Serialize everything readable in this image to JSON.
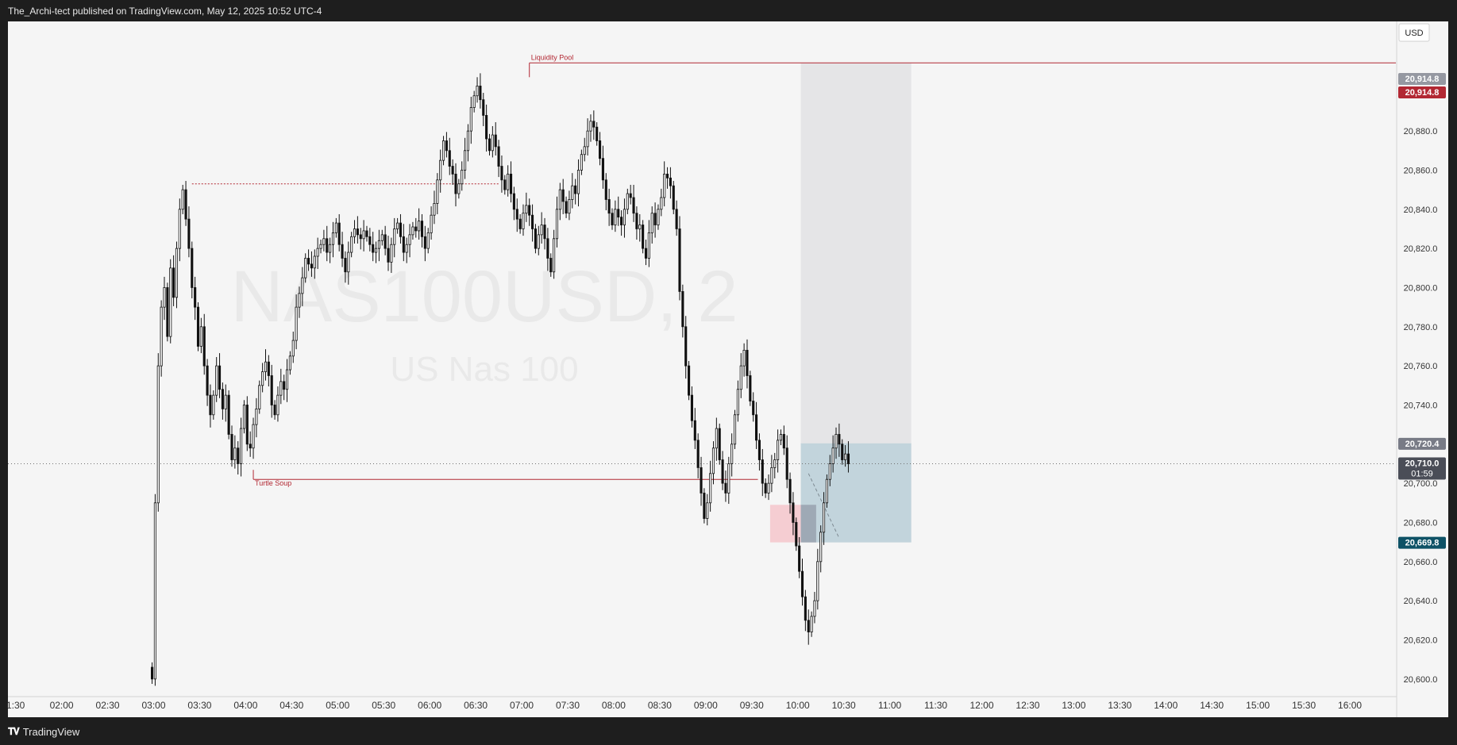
{
  "header": {
    "published": "The_Archi-tect published on TradingView.com, May 12, 2025 10:52 UTC-4"
  },
  "footer": {
    "brand": "TradingView",
    "logo": "tradingview-logo-icon"
  },
  "chart_data": {
    "type": "candlestick",
    "watermark": {
      "symbol": "NAS100USD, 2",
      "description": "US Nas 100"
    },
    "currency": "USD",
    "time_axis": {
      "ticks": [
        "1:30",
        "02:00",
        "02:30",
        "03:00",
        "03:30",
        "04:00",
        "04:30",
        "05:00",
        "05:30",
        "06:00",
        "06:30",
        "07:00",
        "07:30",
        "08:00",
        "08:30",
        "09:00",
        "09:30",
        "10:00",
        "10:30",
        "11:00",
        "11:30",
        "12:00",
        "12:30",
        "13:00",
        "13:30",
        "14:00",
        "14:30",
        "15:00",
        "15:30",
        "16:00"
      ],
      "range": [
        "01:25",
        "16:30"
      ]
    },
    "price_axis": {
      "ticks": [
        "20,600.0",
        "20,620.0",
        "20,640.0",
        "20,660.0",
        "20,680.0",
        "20,700.0",
        "20,720.0",
        "20,740.0",
        "20,760.0",
        "20,780.0",
        "20,800.0",
        "20,820.0",
        "20,840.0",
        "20,860.0",
        "20,880.0",
        "20,900.0"
      ],
      "range": [
        20591,
        20936
      ]
    },
    "price_labels": [
      {
        "text": "20,914.8",
        "value": 20914.8,
        "color": "#9598a1"
      },
      {
        "text": "20,914.8",
        "value": 20914.8,
        "color": "#b22833"
      },
      {
        "text": "20,720.4",
        "value": 20720.4,
        "color": "#787b86"
      },
      {
        "text": "20,710.0",
        "countdown": "01:59",
        "value": 20710.0,
        "color": "#4a4d57"
      },
      {
        "text": "20,669.8",
        "value": 20669.8,
        "color": "#0e5266"
      }
    ],
    "current_price": 20710.0,
    "annotations": [
      {
        "text": "Liquidity Pool",
        "kind": "horizontal-level",
        "price": 20914.8,
        "from": "07:05",
        "to": "16:30",
        "color": "#b22833"
      },
      {
        "text": "Turtle Soup",
        "kind": "horizontal-level",
        "price": 20702.0,
        "from": "04:05",
        "to": "09:34",
        "color": "#b22833"
      },
      {
        "text": "",
        "kind": "dotted-level",
        "price": 20853.0,
        "from": "03:25",
        "to": "06:45",
        "color": "#b22833"
      }
    ],
    "zones": [
      {
        "name": "gray-range",
        "time_from": "10:02",
        "time_to": "11:14",
        "price_low": 20669.8,
        "price_high": 20914.8,
        "color": "#e2e2e4"
      },
      {
        "name": "pink-gap",
        "time_from": "09:42",
        "time_to": "10:12",
        "price_low": 20669.8,
        "price_high": 20689.0,
        "color": "#f4c6cb"
      },
      {
        "name": "blue-range",
        "time_from": "10:02",
        "time_to": "11:14",
        "price_low": 20669.8,
        "price_high": 20720.4,
        "color": "#bcd1d9"
      }
    ],
    "ohlc_points": [
      [
        "02:59",
        20600
      ],
      [
        "03:01",
        20690
      ],
      [
        "03:03",
        20760
      ],
      [
        "03:05",
        20790
      ],
      [
        "03:07",
        20800
      ],
      [
        "03:09",
        20775
      ],
      [
        "03:11",
        20810
      ],
      [
        "03:13",
        20795
      ],
      [
        "03:15",
        20820
      ],
      [
        "03:17",
        20840
      ],
      [
        "03:19",
        20850
      ],
      [
        "03:21",
        20835
      ],
      [
        "03:23",
        20820
      ],
      [
        "03:25",
        20800
      ],
      [
        "03:27",
        20790
      ],
      [
        "03:29",
        20770
      ],
      [
        "03:31",
        20780
      ],
      [
        "03:33",
        20760
      ],
      [
        "03:35",
        20745
      ],
      [
        "03:37",
        20735
      ],
      [
        "03:39",
        20745
      ],
      [
        "03:41",
        20760
      ],
      [
        "03:43",
        20748
      ],
      [
        "03:45",
        20738
      ],
      [
        "03:47",
        20745
      ],
      [
        "03:49",
        20725
      ],
      [
        "03:51",
        20712
      ],
      [
        "03:53",
        20718
      ],
      [
        "03:55",
        20710
      ],
      [
        "03:57",
        20728
      ],
      [
        "03:59",
        20740
      ],
      [
        "04:01",
        20720
      ],
      [
        "04:03",
        20718
      ],
      [
        "04:05",
        20730
      ],
      [
        "04:07",
        20738
      ],
      [
        "04:09",
        20750
      ],
      [
        "04:11",
        20757
      ],
      [
        "04:13",
        20762
      ],
      [
        "04:15",
        20755
      ],
      [
        "04:17",
        20740
      ],
      [
        "04:19",
        20735
      ],
      [
        "04:21",
        20745
      ],
      [
        "04:23",
        20752
      ],
      [
        "04:25",
        20748
      ],
      [
        "04:27",
        20758
      ],
      [
        "04:29",
        20765
      ],
      [
        "04:31",
        20773
      ],
      [
        "04:33",
        20790
      ],
      [
        "04:35",
        20797
      ],
      [
        "04:37",
        20805
      ],
      [
        "04:39",
        20815
      ],
      [
        "04:41",
        20812
      ],
      [
        "04:43",
        20810
      ],
      [
        "04:45",
        20816
      ],
      [
        "04:47",
        20820
      ],
      [
        "04:49",
        20822
      ],
      [
        "04:51",
        20825
      ],
      [
        "04:53",
        20818
      ],
      [
        "04:55",
        20822
      ],
      [
        "04:57",
        20828
      ],
      [
        "04:59",
        20833
      ],
      [
        "05:01",
        20822
      ],
      [
        "05:03",
        20815
      ],
      [
        "05:05",
        20808
      ],
      [
        "05:07",
        20818
      ],
      [
        "05:09",
        20826
      ],
      [
        "05:11",
        20830
      ],
      [
        "05:13",
        20827
      ],
      [
        "05:15",
        20825
      ],
      [
        "05:17",
        20829
      ],
      [
        "05:19",
        20826
      ],
      [
        "05:21",
        20822
      ],
      [
        "05:23",
        20818
      ],
      [
        "05:25",
        20820
      ],
      [
        "05:27",
        20824
      ],
      [
        "05:29",
        20827
      ],
      [
        "05:31",
        20820
      ],
      [
        "05:33",
        20813
      ],
      [
        "05:35",
        20822
      ],
      [
        "05:37",
        20830
      ],
      [
        "05:39",
        20833
      ],
      [
        "05:41",
        20826
      ],
      [
        "05:43",
        20818
      ],
      [
        "05:45",
        20822
      ],
      [
        "05:47",
        20827
      ],
      [
        "05:49",
        20831
      ],
      [
        "05:51",
        20829
      ],
      [
        "05:53",
        20834
      ],
      [
        "05:55",
        20826
      ],
      [
        "05:57",
        20820
      ],
      [
        "05:59",
        20828
      ],
      [
        "06:01",
        20837
      ],
      [
        "06:03",
        20843
      ],
      [
        "06:05",
        20855
      ],
      [
        "06:07",
        20865
      ],
      [
        "06:09",
        20875
      ],
      [
        "06:11",
        20870
      ],
      [
        "06:13",
        20862
      ],
      [
        "06:15",
        20858
      ],
      [
        "06:17",
        20848
      ],
      [
        "06:19",
        20853
      ],
      [
        "06:21",
        20860
      ],
      [
        "06:23",
        20870
      ],
      [
        "06:25",
        20880
      ],
      [
        "06:27",
        20892
      ],
      [
        "06:29",
        20898
      ],
      [
        "06:31",
        20903
      ],
      [
        "06:33",
        20896
      ],
      [
        "06:35",
        20888
      ],
      [
        "06:37",
        20876
      ],
      [
        "06:39",
        20870
      ],
      [
        "06:41",
        20878
      ],
      [
        "06:43",
        20872
      ],
      [
        "06:45",
        20862
      ],
      [
        "06:47",
        20855
      ],
      [
        "06:49",
        20850
      ],
      [
        "06:51",
        20858
      ],
      [
        "06:53",
        20848
      ],
      [
        "06:55",
        20840
      ],
      [
        "06:57",
        20835
      ],
      [
        "06:59",
        20830
      ],
      [
        "07:01",
        20838
      ],
      [
        "07:03",
        20842
      ],
      [
        "07:05",
        20837
      ],
      [
        "07:07",
        20830
      ],
      [
        "07:09",
        20820
      ],
      [
        "07:11",
        20827
      ],
      [
        "07:13",
        20832
      ],
      [
        "07:15",
        20825
      ],
      [
        "07:17",
        20815
      ],
      [
        "07:19",
        20808
      ],
      [
        "07:21",
        20825
      ],
      [
        "07:23",
        20840
      ],
      [
        "07:25",
        20850
      ],
      [
        "07:27",
        20844
      ],
      [
        "07:29",
        20838
      ],
      [
        "07:31",
        20845
      ],
      [
        "07:33",
        20852
      ],
      [
        "07:35",
        20848
      ],
      [
        "07:37",
        20860
      ],
      [
        "07:39",
        20868
      ],
      [
        "07:41",
        20872
      ],
      [
        "07:43",
        20880
      ],
      [
        "07:45",
        20885
      ],
      [
        "07:47",
        20882
      ],
      [
        "07:49",
        20875
      ],
      [
        "07:51",
        20866
      ],
      [
        "07:53",
        20855
      ],
      [
        "07:55",
        20845
      ],
      [
        "07:57",
        20838
      ],
      [
        "07:59",
        20832
      ],
      [
        "08:01",
        20840
      ],
      [
        "08:03",
        20836
      ],
      [
        "08:05",
        20832
      ],
      [
        "08:07",
        20840
      ],
      [
        "08:09",
        20848
      ],
      [
        "08:11",
        20846
      ],
      [
        "08:13",
        20838
      ],
      [
        "08:15",
        20830
      ],
      [
        "08:17",
        20832
      ],
      [
        "08:19",
        20820
      ],
      [
        "08:21",
        20815
      ],
      [
        "08:23",
        20828
      ],
      [
        "08:25",
        20838
      ],
      [
        "08:27",
        20832
      ],
      [
        "08:29",
        20840
      ],
      [
        "08:31",
        20846
      ],
      [
        "08:33",
        20858
      ],
      [
        "08:35",
        20856
      ],
      [
        "08:37",
        20852
      ],
      [
        "08:39",
        20840
      ],
      [
        "08:41",
        20830
      ],
      [
        "08:43",
        20798
      ],
      [
        "08:45",
        20780
      ],
      [
        "08:47",
        20760
      ],
      [
        "08:49",
        20745
      ],
      [
        "08:51",
        20732
      ],
      [
        "08:53",
        20722
      ],
      [
        "08:55",
        20708
      ],
      [
        "08:57",
        20695
      ],
      [
        "08:59",
        20682
      ],
      [
        "09:01",
        20690
      ],
      [
        "09:03",
        20705
      ],
      [
        "09:05",
        20718
      ],
      [
        "09:07",
        20728
      ],
      [
        "09:09",
        20712
      ],
      [
        "09:11",
        20700
      ],
      [
        "09:13",
        20695
      ],
      [
        "09:15",
        20710
      ],
      [
        "09:17",
        20720
      ],
      [
        "09:19",
        20735
      ],
      [
        "09:21",
        20748
      ],
      [
        "09:23",
        20760
      ],
      [
        "09:25",
        20768
      ],
      [
        "09:27",
        20755
      ],
      [
        "09:29",
        20742
      ],
      [
        "09:31",
        20735
      ],
      [
        "09:33",
        20722
      ],
      [
        "09:35",
        20712
      ],
      [
        "09:37",
        20700
      ],
      [
        "09:39",
        20695
      ],
      [
        "09:41",
        20700
      ],
      [
        "09:43",
        20708
      ],
      [
        "09:45",
        20712
      ],
      [
        "09:47",
        20722
      ],
      [
        "09:49",
        20725
      ],
      [
        "09:51",
        20718
      ],
      [
        "09:53",
        20702
      ],
      [
        "09:55",
        20690
      ],
      [
        "09:57",
        20680
      ],
      [
        "09:59",
        20668
      ],
      [
        "10:01",
        20655
      ],
      [
        "10:03",
        20642
      ],
      [
        "10:05",
        20630
      ],
      [
        "10:07",
        20624
      ],
      [
        "10:09",
        20632
      ],
      [
        "10:11",
        20640
      ],
      [
        "10:13",
        20660
      ],
      [
        "10:15",
        20675
      ],
      [
        "10:17",
        20690
      ],
      [
        "10:19",
        20702
      ],
      [
        "10:21",
        20710
      ],
      [
        "10:23",
        20718
      ],
      [
        "10:25",
        20725
      ],
      [
        "10:27",
        20720
      ],
      [
        "10:29",
        20712
      ],
      [
        "10:31",
        20715
      ],
      [
        "10:33",
        20710
      ]
    ]
  }
}
